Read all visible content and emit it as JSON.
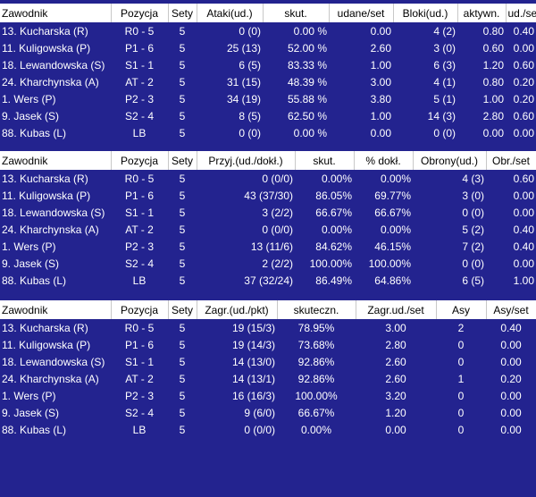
{
  "tables": [
    {
      "name": "attack-table",
      "columns": [
        {
          "label": "Zawodnik",
          "w": 124,
          "a": "l"
        },
        {
          "label": "Pozycja",
          "w": 64,
          "a": "c"
        },
        {
          "label": "Sety",
          "w": 32,
          "a": "c"
        },
        {
          "label": "Ataki(ud.)",
          "w": 74,
          "a": "r"
        },
        {
          "label": "skut.",
          "w": 74,
          "a": "r"
        },
        {
          "label": "udane/set",
          "w": 72,
          "a": "r"
        },
        {
          "label": "Bloki(ud.)",
          "w": 72,
          "a": "r"
        },
        {
          "label": "aktywn.",
          "w": 54,
          "a": "r"
        },
        {
          "label": "ud./se",
          "w": 34,
          "a": "r"
        }
      ],
      "rows": [
        [
          "13. Kucharska (R)",
          "R0 - 5",
          "5",
          "0 (0)",
          "0.00 %",
          "0.00",
          "4 (2)",
          "0.80",
          "0.40"
        ],
        [
          "11. Kuligowska (P)",
          "P1 - 6",
          "5",
          "25 (13)",
          "52.00 %",
          "2.60",
          "3 (0)",
          "0.60",
          "0.00"
        ],
        [
          "18. Lewandowska (S)",
          "S1 - 1",
          "5",
          "6 (5)",
          "83.33 %",
          "1.00",
          "6 (3)",
          "1.20",
          "0.60"
        ],
        [
          "24. Kharchynska (A)",
          "AT - 2",
          "5",
          "31 (15)",
          "48.39 %",
          "3.00",
          "4 (1)",
          "0.80",
          "0.20"
        ],
        [
          "1. Wers (P)",
          "P2 - 3",
          "5",
          "34 (19)",
          "55.88 %",
          "3.80",
          "5 (1)",
          "1.00",
          "0.20"
        ],
        [
          "9. Jasek (S)",
          "S2 - 4",
          "5",
          "8 (5)",
          "62.50 %",
          "1.00",
          "14 (3)",
          "2.80",
          "0.60"
        ],
        [
          "88. Kubas (L)",
          "LB",
          "5",
          "0 (0)",
          "0.00 %",
          "0.00",
          "0 (0)",
          "0.00",
          "0.00"
        ]
      ]
    },
    {
      "name": "reception-table",
      "columns": [
        {
          "label": "Zawodnik",
          "w": 124,
          "a": "l"
        },
        {
          "label": "Pozycja",
          "w": 64,
          "a": "c"
        },
        {
          "label": "Sety",
          "w": 32,
          "a": "c"
        },
        {
          "label": "Przyj.(ud./dokł.)",
          "w": 110,
          "a": "r"
        },
        {
          "label": "skut.",
          "w": 66,
          "a": "r"
        },
        {
          "label": "% dokł.",
          "w": 66,
          "a": "r"
        },
        {
          "label": "Obrony(ud.)",
          "w": 82,
          "a": "r"
        },
        {
          "label": "Obr./set",
          "w": 56,
          "a": "r"
        }
      ],
      "rows": [
        [
          "13. Kucharska (R)",
          "R0 - 5",
          "5",
          "0 (0/0)",
          "0.00%",
          "0.00%",
          "4 (3)",
          "0.60"
        ],
        [
          "11. Kuligowska (P)",
          "P1 - 6",
          "5",
          "43 (37/30)",
          "86.05%",
          "69.77%",
          "3 (0)",
          "0.00"
        ],
        [
          "18. Lewandowska (S)",
          "S1 - 1",
          "5",
          "3 (2/2)",
          "66.67%",
          "66.67%",
          "0 (0)",
          "0.00"
        ],
        [
          "24. Kharchynska (A)",
          "AT - 2",
          "5",
          "0 (0/0)",
          "0.00%",
          "0.00%",
          "5 (2)",
          "0.40"
        ],
        [
          "1. Wers (P)",
          "P2 - 3",
          "5",
          "13 (11/6)",
          "84.62%",
          "46.15%",
          "7 (2)",
          "0.40"
        ],
        [
          "9. Jasek (S)",
          "S2 - 4",
          "5",
          "2 (2/2)",
          "100.00%",
          "100.00%",
          "0 (0)",
          "0.00"
        ],
        [
          "88. Kubas (L)",
          "LB",
          "5",
          "37 (32/24)",
          "86.49%",
          "64.86%",
          "6 (5)",
          "1.00"
        ]
      ]
    },
    {
      "name": "serve-table",
      "columns": [
        {
          "label": "Zawodnik",
          "w": 124,
          "a": "l"
        },
        {
          "label": "Pozycja",
          "w": 64,
          "a": "c"
        },
        {
          "label": "Sety",
          "w": 32,
          "a": "c"
        },
        {
          "label": "Zagr.(ud./pkt)",
          "w": 90,
          "a": "r"
        },
        {
          "label": "skuteczn.",
          "w": 88,
          "a": "c"
        },
        {
          "label": "Zagr.ud./set",
          "w": 90,
          "a": "c"
        },
        {
          "label": "Asy",
          "w": 56,
          "a": "c"
        },
        {
          "label": "Asy/set",
          "w": 56,
          "a": "c"
        }
      ],
      "rows": [
        [
          "13. Kucharska (R)",
          "R0 - 5",
          "5",
          "19 (15/3)",
          "78.95%",
          "3.00",
          "2",
          "0.40"
        ],
        [
          "11. Kuligowska (P)",
          "P1 - 6",
          "5",
          "19 (14/3)",
          "73.68%",
          "2.80",
          "0",
          "0.00"
        ],
        [
          "18. Lewandowska (S)",
          "S1 - 1",
          "5",
          "14 (13/0)",
          "92.86%",
          "2.60",
          "0",
          "0.00"
        ],
        [
          "24. Kharchynska (A)",
          "AT - 2",
          "5",
          "14 (13/1)",
          "92.86%",
          "2.60",
          "1",
          "0.20"
        ],
        [
          "1. Wers (P)",
          "P2 - 3",
          "5",
          "16 (16/3)",
          "100.00%",
          "3.20",
          "0",
          "0.00"
        ],
        [
          "9. Jasek (S)",
          "S2 - 4",
          "5",
          "9 (6/0)",
          "66.67%",
          "1.20",
          "0",
          "0.00"
        ],
        [
          "88. Kubas (L)",
          "LB",
          "5",
          "0 (0/0)",
          "0.00%",
          "0.00",
          "0",
          "0.00"
        ]
      ]
    }
  ]
}
